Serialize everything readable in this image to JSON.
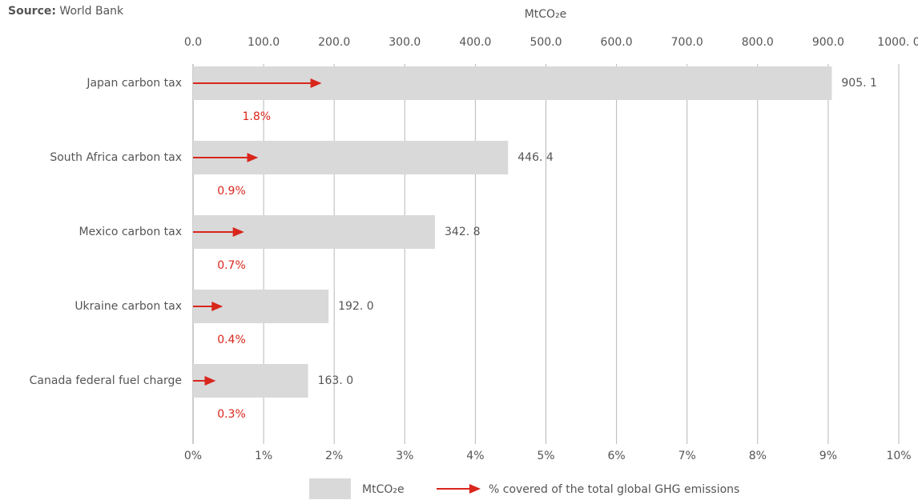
{
  "chart_data": {
    "type": "bar",
    "source_label": "Source:",
    "source": "World Bank",
    "xlabel": "MtCO₂e",
    "categories": [
      "Japan carbon tax",
      "South Africa carbon tax",
      "Mexico carbon tax",
      "Ukraine carbon tax",
      "Canada federal fuel charge"
    ],
    "series": [
      {
        "name": "MtCO₂e",
        "color": "#d9d9da",
        "axis": "x",
        "values": [
          905.1,
          446.4,
          342.8,
          192.0,
          163.0
        ],
        "value_labels": [
          "905. 1",
          "446. 4",
          "342. 8",
          "192. 0",
          "163. 0"
        ]
      },
      {
        "name": "% covered of the total global GHG emissions",
        "color": "#d9261c",
        "axis": "x2",
        "values": [
          1.8,
          0.9,
          0.7,
          0.4,
          0.3
        ],
        "value_labels": [
          "1.8%",
          "0.9%",
          "0.7%",
          "0.4%",
          "0.3%"
        ]
      }
    ],
    "xlim": [
      0,
      1000
    ],
    "xticks": [
      {
        "value": 0,
        "label": "0.0"
      },
      {
        "value": 100,
        "label": "100.0"
      },
      {
        "value": 200,
        "label": "200.0"
      },
      {
        "value": 300,
        "label": "300.0"
      },
      {
        "value": 400,
        "label": "400.0"
      },
      {
        "value": 500,
        "label": "500.0"
      },
      {
        "value": 600,
        "label": "600.0"
      },
      {
        "value": 700,
        "label": "700.0"
      },
      {
        "value": 800,
        "label": "800.0"
      },
      {
        "value": 900,
        "label": "900.0"
      },
      {
        "value": 1000,
        "label": "1000. 0"
      }
    ],
    "x2lim": [
      0,
      10
    ],
    "x2ticks": [
      {
        "value": 0,
        "label": "0%"
      },
      {
        "value": 1,
        "label": "1%"
      },
      {
        "value": 2,
        "label": "2%"
      },
      {
        "value": 3,
        "label": "3%"
      },
      {
        "value": 4,
        "label": "4%"
      },
      {
        "value": 5,
        "label": "5%"
      },
      {
        "value": 6,
        "label": "6%"
      },
      {
        "value": 7,
        "label": "7%"
      },
      {
        "value": 8,
        "label": "8%"
      },
      {
        "value": 9,
        "label": "9%"
      },
      {
        "value": 10,
        "label": "10%"
      }
    ],
    "grid": true,
    "legend": "bottom"
  }
}
